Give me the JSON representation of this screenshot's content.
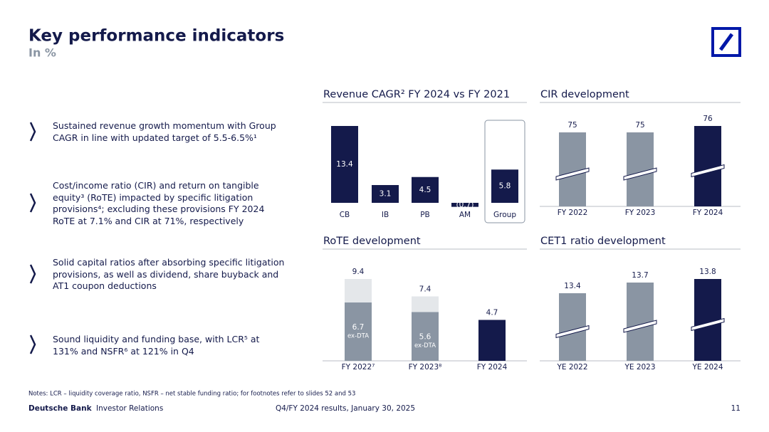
{
  "header": {
    "title": "Key performance indicators",
    "subtitle": "In %"
  },
  "bullets": [
    "Sustained revenue growth momentum with Group CAGR in line with updated target of 5.5-6.5%¹",
    "Cost/income ratio (CIR) and return on tangible equity³ (RoTE) impacted by specific litigation provisions⁴; excluding these provisions FY 2024 RoTE at 7.1% and CIR at 71%, respectively",
    "Solid capital ratios after absorbing specific litigation provisions, as well as dividend, share buyback and AT1 coupon deductions",
    "Sound liquidity and funding base, with LCR⁵ at 131% and NSFR⁶ at 121% in Q4"
  ],
  "footer": {
    "notes": "Notes: LCR – liquidity coverage ratio, NSFR – net stable funding ratio; for footnotes refer to slides 52 and 53",
    "brand": "Deutsche Bank",
    "unit": "Investor Relations",
    "event": "Q4/FY 2024 results, January 30, 2025",
    "page": "11"
  },
  "chart_data": [
    {
      "type": "bar",
      "title": "Revenue CAGR² FY 2024 vs FY 2021",
      "categories": [
        "CB",
        "IB",
        "PB",
        "AM",
        "Group"
      ],
      "values": [
        13.4,
        3.1,
        4.5,
        -0.7,
        5.8
      ],
      "value_labels": [
        "13.4",
        "3.1",
        "4.5",
        "(0.7)",
        "5.8"
      ],
      "color": "#141a4b",
      "label_position": "inside",
      "highlight": 4
    },
    {
      "type": "bar",
      "title": "CIR development",
      "categories": [
        "FY 2022",
        "FY 2023",
        "FY 2024"
      ],
      "values": [
        75,
        75,
        76
      ],
      "colors": [
        "#8a95a3",
        "#8a95a3",
        "#141a4b"
      ],
      "label_position": "above",
      "axis_break": true
    },
    {
      "type": "overlay_bar",
      "title": "RoTE development",
      "categories": [
        "FY 2022⁷",
        "FY 2023⁸",
        "FY 2024"
      ],
      "series": [
        {
          "colors": [
            "#e4e7ea",
            "#e4e7ea",
            "#141a4b"
          ],
          "values": [
            9.4,
            7.4,
            4.7
          ]
        },
        {
          "name": "ex-DTA",
          "color": "#8a95a3",
          "values": [
            6.7,
            5.6,
            null
          ]
        }
      ]
    },
    {
      "type": "bar",
      "title": "CET1 ratio development",
      "categories": [
        "YE 2022",
        "YE 2023",
        "YE 2024"
      ],
      "values": [
        13.4,
        13.7,
        13.8
      ],
      "colors": [
        "#8a95a3",
        "#8a95a3",
        "#141a4b"
      ],
      "label_position": "above",
      "axis_break": true
    }
  ]
}
